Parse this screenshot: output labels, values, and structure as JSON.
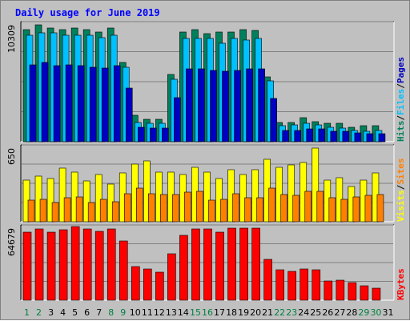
{
  "chart_data": {
    "title": "Daily usage for June 2019",
    "type": "bar",
    "x": [
      "1",
      "2",
      "3",
      "4",
      "5",
      "6",
      "7",
      "8",
      "9",
      "10",
      "11",
      "12",
      "13",
      "14",
      "15",
      "16",
      "17",
      "18",
      "19",
      "20",
      "21",
      "22",
      "23",
      "24",
      "25",
      "26",
      "27",
      "28",
      "29",
      "30",
      "31"
    ],
    "weekend_days": [
      "1",
      "2",
      "8",
      "9",
      "15",
      "16",
      "22",
      "23",
      "29",
      "30"
    ],
    "colors": {
      "background": "#c0c0c0",
      "hits": "#00805c",
      "files": "#00c0ff",
      "pages": "#0000c0",
      "visits": "#ffff00",
      "sites": "#ff8000",
      "kbytes": "#ff0000",
      "title": "#0000ff",
      "weekend_label": "#008040",
      "weekday_label": "#000000",
      "grid": "#808080"
    },
    "panels": [
      {
        "id": "hits-files-pages",
        "max_label": "10309",
        "ylim": [
          0,
          10309
        ],
        "axis_labels": [
          {
            "text": "Hits",
            "color": "#00805c"
          },
          {
            "text": "/",
            "color": "#000000"
          },
          {
            "text": "Files",
            "color": "#00c0ff"
          },
          {
            "text": "/",
            "color": "#000000"
          },
          {
            "text": "Pages",
            "color": "#0000c0"
          }
        ],
        "series": [
          {
            "name": "Hits",
            "color": "#00805c",
            "values": [
              9900,
              10300,
              10000,
              9900,
              10000,
              9900,
              9700,
              10000,
              7000,
              2300,
              2000,
              2000,
              5900,
              9700,
              9900,
              9500,
              9700,
              9700,
              9900,
              9800,
              5700,
              1700,
              1700,
              2100,
              1800,
              1600,
              1600,
              1300,
              1400,
              1400,
              0
            ]
          },
          {
            "name": "Files",
            "color": "#00c0ff",
            "values": [
              9400,
              9600,
              9600,
              9400,
              9400,
              9400,
              9200,
              9400,
              6600,
              1700,
              1600,
              1600,
              5500,
              9100,
              9100,
              9100,
              8700,
              9100,
              9000,
              9100,
              5400,
              1400,
              1500,
              1600,
              1500,
              1300,
              1200,
              1000,
              900,
              1000,
              0
            ]
          },
          {
            "name": "Pages",
            "color": "#0000c0",
            "values": [
              6800,
              7000,
              6700,
              6800,
              6700,
              6600,
              6500,
              6700,
              4700,
              1300,
              1200,
              1200,
              3900,
              6400,
              6400,
              6300,
              6200,
              6300,
              6400,
              6400,
              3800,
              1000,
              1000,
              1100,
              1100,
              900,
              900,
              800,
              700,
              700,
              0
            ]
          }
        ]
      },
      {
        "id": "visits-sites",
        "max_label": "650",
        "ylim": [
          0,
          650
        ],
        "axis_labels": [
          {
            "text": "Visits",
            "color": "#ffff00"
          },
          {
            "text": "/",
            "color": "#000000"
          },
          {
            "text": "Sites",
            "color": "#ff8000"
          }
        ],
        "series": [
          {
            "name": "Visits",
            "color": "#ffff00",
            "values": [
              370,
              400,
              380,
              470,
              440,
              360,
              420,
              330,
              430,
              510,
              540,
              440,
              440,
              420,
              480,
              440,
              380,
              460,
              420,
              460,
              550,
              480,
              500,
              520,
              650,
              370,
              390,
              310,
              370,
              430,
              0
            ]
          },
          {
            "name": "Sites",
            "color": "#ff8000",
            "values": [
              190,
              200,
              170,
              210,
              220,
              170,
              200,
              180,
              250,
              300,
              250,
              240,
              240,
              260,
              270,
              190,
              200,
              250,
              210,
              210,
              300,
              240,
              230,
              270,
              270,
              210,
              200,
              220,
              230,
              240,
              0
            ]
          }
        ]
      },
      {
        "id": "kbytes",
        "max_label": "64679",
        "ylim": [
          0,
          64679
        ],
        "axis_labels": [
          {
            "text": "KBytes",
            "color": "#ff0000"
          }
        ],
        "series": [
          {
            "name": "KBytes",
            "color": "#ff0000",
            "values": [
              61000,
              64000,
              61000,
              63000,
              66000,
              64000,
              62000,
              64000,
              53000,
              30000,
              28000,
              25000,
              42000,
              58000,
              64000,
              64000,
              61000,
              65000,
              65000,
              65000,
              37000,
              27000,
              26000,
              28000,
              27000,
              17000,
              18000,
              16000,
              13000,
              11000,
              0
            ]
          }
        ]
      }
    ]
  }
}
